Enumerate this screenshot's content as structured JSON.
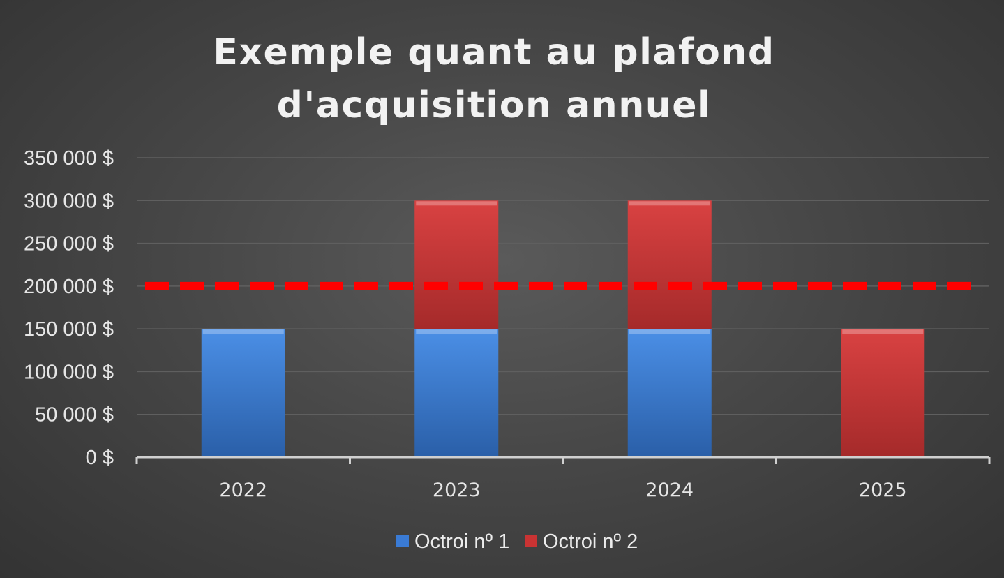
{
  "chart_data": {
    "type": "bar",
    "stacked": true,
    "title_lines": [
      "Exemple quant au plafond",
      "d'acquisition annuel"
    ],
    "xlabel": "",
    "ylabel": "",
    "categories": [
      "2022",
      "2023",
      "2024",
      "2025"
    ],
    "series": [
      {
        "name": "Octroi nº 1",
        "color": "#3a7bd5",
        "values": [
          150000,
          150000,
          150000,
          0
        ]
      },
      {
        "name": "Octroi nº 2",
        "color": "#c93333",
        "values": [
          0,
          150000,
          150000,
          150000
        ]
      }
    ],
    "reference_line": {
      "value": 200000,
      "color": "#ff0000",
      "style": "dashed"
    },
    "ylim": [
      0,
      350000
    ],
    "yticks": [
      0,
      50000,
      100000,
      150000,
      200000,
      250000,
      300000,
      350000
    ],
    "ytick_labels": [
      "0 $",
      "50 000 $",
      "100 000 $",
      "150 000 $",
      "200 000 $",
      "250 000 $",
      "300 000 $",
      "350 000 $"
    ],
    "grid": true,
    "legend_position": "bottom",
    "background": "#474747"
  }
}
